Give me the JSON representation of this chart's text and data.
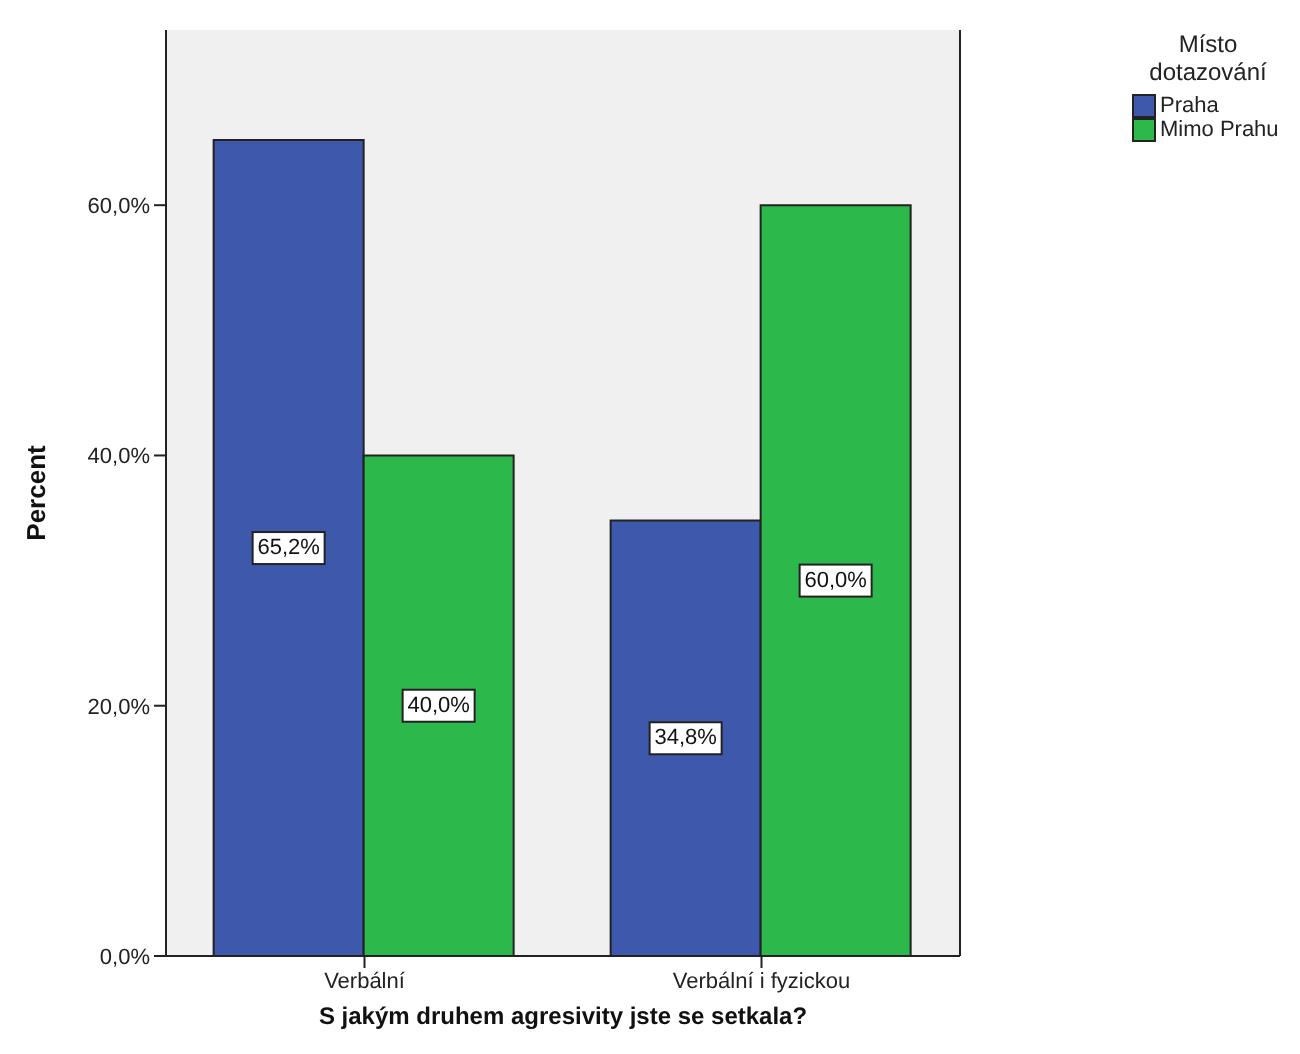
{
  "chart_data": {
    "type": "bar",
    "xlabel": "S jakým druhem agresivity jste se setkala?",
    "ylabel": "Percent",
    "legend_title": "Místo dotazování",
    "categories": [
      "Verbální",
      "Verbální i fyzickou"
    ],
    "series": [
      {
        "name": "Praha",
        "color": "#3e58ac",
        "values": [
          65.2,
          34.8
        ],
        "value_labels": [
          "65,2%",
          "34,8%"
        ]
      },
      {
        "name": "Mimo Prahu",
        "color": "#2db84b",
        "values": [
          40.0,
          60.0
        ],
        "value_labels": [
          "40,0%",
          "60,0%"
        ]
      }
    ],
    "ylim": [
      0,
      74
    ],
    "yticks": [
      {
        "value": 0,
        "label": "0,0%"
      },
      {
        "value": 20,
        "label": "20,0%"
      },
      {
        "value": 40,
        "label": "40,0%"
      },
      {
        "value": 60,
        "label": "60,0%"
      }
    ],
    "grid": false,
    "legend": "top right"
  }
}
